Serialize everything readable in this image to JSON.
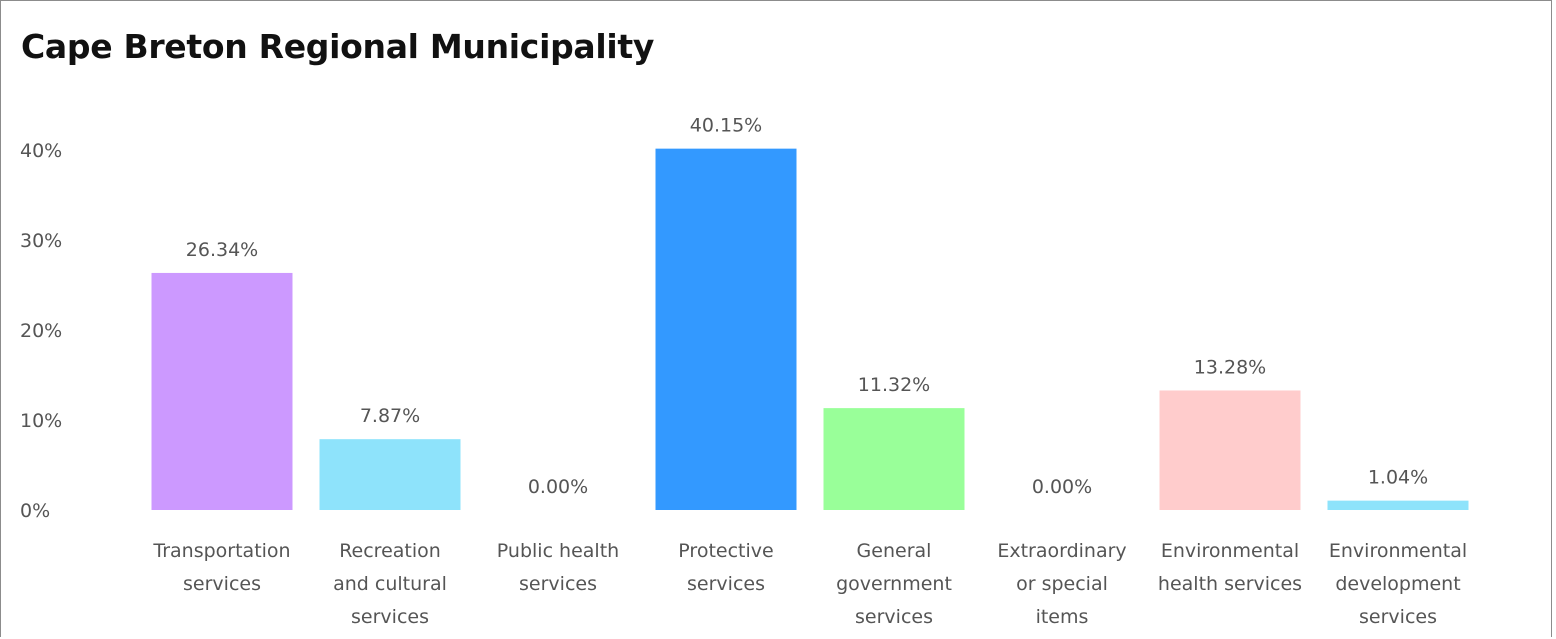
{
  "chart_data": {
    "type": "bar",
    "title": "Cape Breton Regional Municipality",
    "xlabel": "",
    "ylabel": "",
    "ylim": [
      0,
      40
    ],
    "yticks": [
      "0%",
      "10%",
      "20%",
      "30%",
      "40%"
    ],
    "grid": false,
    "categories": [
      [
        "Transportation",
        "services"
      ],
      [
        "Recreation",
        "and cultural",
        "services"
      ],
      [
        "Public health",
        "services"
      ],
      [
        "Protective",
        "services"
      ],
      [
        "General",
        "government",
        "services"
      ],
      [
        "Extraordinary",
        "or special",
        "items"
      ],
      [
        "Environmental",
        "health services"
      ],
      [
        "Environmental",
        "development",
        "services"
      ]
    ],
    "values": [
      26.34,
      7.87,
      0.0,
      40.15,
      11.32,
      0.0,
      13.28,
      1.04
    ],
    "value_labels": [
      "26.34%",
      "7.87%",
      "0.00%",
      "40.15%",
      "11.32%",
      "0.00%",
      "13.28%",
      "1.04%"
    ],
    "colors": [
      "#cc99ff",
      "#8ee3fb",
      "#8ee3fb",
      "#3399ff",
      "#99ff99",
      "#8ee3fb",
      "#ffcccc",
      "#8ee3fb"
    ]
  }
}
